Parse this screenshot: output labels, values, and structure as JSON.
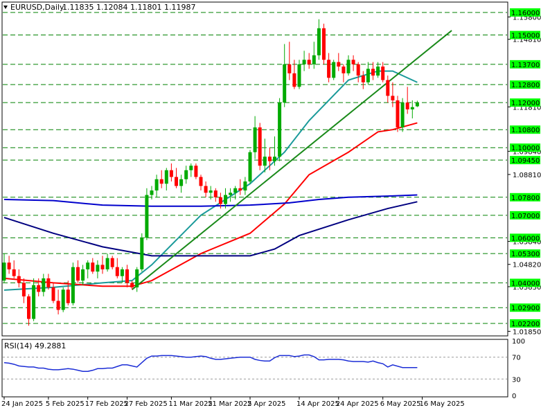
{
  "header": {
    "symbol": "EURUSD,Daily",
    "ohlc": "1.11835 1.12084 1.11801 1.11987",
    "menu_icon": "triangle-down-icon"
  },
  "rsi": {
    "title": "RSI(14) 49.2881",
    "scale_labels": [
      "100",
      "70",
      "30",
      "0"
    ],
    "levels": [
      30,
      70
    ]
  },
  "colors": {
    "bull": "#00aa00",
    "bear": "#ff0000",
    "hline": "#008000",
    "ma_fast": "#1a9a9a",
    "ma_mid": "#ff0000",
    "ma_slow": "#000080",
    "ma_long": "#0000cc",
    "trendline": "#1a8a1a",
    "rsi_line": "#1a2cd6",
    "level_box": "#00ff00"
  },
  "chart_data": {
    "type": "candlestick",
    "symbol": "EURUSD",
    "timeframe": "Daily",
    "ylim": [
      1.018,
      1.164
    ],
    "x_labels": [
      {
        "i": 0,
        "text": "24 Jan 2025"
      },
      {
        "i": 9,
        "text": "5 Feb 2025"
      },
      {
        "i": 17,
        "text": "17 Feb 2025"
      },
      {
        "i": 25,
        "text": "27 Feb 2025"
      },
      {
        "i": 34,
        "text": "11 Mar 2025"
      },
      {
        "i": 42,
        "text": "21 Mar 2025"
      },
      {
        "i": 50,
        "text": "2 Apr 2025"
      },
      {
        "i": 60,
        "text": "14 Apr 2025"
      },
      {
        "i": 68,
        "text": "24 Apr 2025"
      },
      {
        "i": 77,
        "text": "6 May 2025"
      },
      {
        "i": 85,
        "text": "16 May 2025"
      }
    ],
    "right_axis_ticks": [
      "1.15800",
      "1.14810",
      "1.11810",
      "1.09840",
      "1.08810",
      "1.05840",
      "1.04820",
      "1.03830",
      "1.01850"
    ],
    "horizontal_levels": [
      {
        "label": "1.16000",
        "value": 1.16
      },
      {
        "label": "1.15000",
        "value": 1.15
      },
      {
        "label": "1.13700",
        "value": 1.137
      },
      {
        "label": "1.12800",
        "value": 1.128
      },
      {
        "label": "1.12000",
        "value": 1.12
      },
      {
        "label": "1.10800",
        "value": 1.108
      },
      {
        "label": "1.10000",
        "value": 1.1
      },
      {
        "label": "1.09450",
        "value": 1.0945
      },
      {
        "label": "1.07800",
        "value": 1.078
      },
      {
        "label": "1.07000",
        "value": 1.07
      },
      {
        "label": "1.06000",
        "value": 1.06
      },
      {
        "label": "1.05300",
        "value": 1.053
      },
      {
        "label": "1.04000",
        "value": 1.04
      },
      {
        "label": "1.02900",
        "value": 1.029
      },
      {
        "label": "1.02200",
        "value": 1.022
      }
    ],
    "candles": [
      [
        1.041,
        1.053,
        1.04,
        1.049
      ],
      [
        1.049,
        1.052,
        1.044,
        1.046
      ],
      [
        1.046,
        1.05,
        1.042,
        1.043
      ],
      [
        1.043,
        1.046,
        1.038,
        1.04
      ],
      [
        1.04,
        1.042,
        1.031,
        1.034
      ],
      [
        1.034,
        1.035,
        1.021,
        1.024
      ],
      [
        1.024,
        1.042,
        1.023,
        1.039
      ],
      [
        1.039,
        1.042,
        1.034,
        1.036
      ],
      [
        1.036,
        1.044,
        1.034,
        1.042
      ],
      [
        1.042,
        1.044,
        1.037,
        1.038
      ],
      [
        1.038,
        1.04,
        1.031,
        1.032
      ],
      [
        1.032,
        1.037,
        1.026,
        1.028
      ],
      [
        1.028,
        1.038,
        1.027,
        1.037
      ],
      [
        1.037,
        1.041,
        1.03,
        1.031
      ],
      [
        1.031,
        1.049,
        1.03,
        1.047
      ],
      [
        1.047,
        1.05,
        1.04,
        1.041
      ],
      [
        1.041,
        1.048,
        1.039,
        1.046
      ],
      [
        1.046,
        1.05,
        1.042,
        1.049
      ],
      [
        1.049,
        1.051,
        1.044,
        1.045
      ],
      [
        1.045,
        1.05,
        1.042,
        1.048
      ],
      [
        1.048,
        1.052,
        1.044,
        1.046
      ],
      [
        1.046,
        1.053,
        1.045,
        1.051
      ],
      [
        1.051,
        1.052,
        1.046,
        1.047
      ],
      [
        1.047,
        1.051,
        1.042,
        1.043
      ],
      [
        1.043,
        1.047,
        1.04,
        1.046
      ],
      [
        1.046,
        1.048,
        1.038,
        1.04
      ],
      [
        1.04,
        1.041,
        1.037,
        1.038
      ],
      [
        1.038,
        1.047,
        1.036,
        1.046
      ],
      [
        1.046,
        1.062,
        1.045,
        1.06
      ],
      [
        1.06,
        1.082,
        1.059,
        1.079
      ],
      [
        1.079,
        1.083,
        1.077,
        1.081
      ],
      [
        1.081,
        1.088,
        1.078,
        1.086
      ],
      [
        1.086,
        1.09,
        1.082,
        1.084
      ],
      [
        1.084,
        1.091,
        1.081,
        1.09
      ],
      [
        1.09,
        1.093,
        1.085,
        1.087
      ],
      [
        1.087,
        1.091,
        1.082,
        1.083
      ],
      [
        1.083,
        1.088,
        1.08,
        1.086
      ],
      [
        1.086,
        1.092,
        1.084,
        1.09
      ],
      [
        1.09,
        1.093,
        1.087,
        1.092
      ],
      [
        1.092,
        1.093,
        1.086,
        1.087
      ],
      [
        1.087,
        1.088,
        1.081,
        1.083
      ],
      [
        1.083,
        1.085,
        1.078,
        1.08
      ],
      [
        1.08,
        1.083,
        1.077,
        1.081
      ],
      [
        1.081,
        1.082,
        1.076,
        1.078
      ],
      [
        1.078,
        1.08,
        1.073,
        1.075
      ],
      [
        1.075,
        1.082,
        1.073,
        1.079
      ],
      [
        1.079,
        1.082,
        1.076,
        1.08
      ],
      [
        1.08,
        1.083,
        1.077,
        1.082
      ],
      [
        1.082,
        1.086,
        1.079,
        1.081
      ],
      [
        1.081,
        1.087,
        1.079,
        1.085
      ],
      [
        1.085,
        1.099,
        1.084,
        1.098
      ],
      [
        1.098,
        1.114,
        1.095,
        1.109
      ],
      [
        1.109,
        1.111,
        1.09,
        1.092
      ],
      [
        1.092,
        1.104,
        1.089,
        1.096
      ],
      [
        1.096,
        1.1,
        1.09,
        1.094
      ],
      [
        1.094,
        1.105,
        1.092,
        1.096
      ],
      [
        1.096,
        1.122,
        1.094,
        1.12
      ],
      [
        1.12,
        1.146,
        1.118,
        1.137
      ],
      [
        1.137,
        1.147,
        1.13,
        1.133
      ],
      [
        1.133,
        1.139,
        1.126,
        1.127
      ],
      [
        1.127,
        1.139,
        1.126,
        1.137
      ],
      [
        1.137,
        1.143,
        1.134,
        1.139
      ],
      [
        1.139,
        1.142,
        1.135,
        1.137
      ],
      [
        1.137,
        1.147,
        1.135,
        1.141
      ],
      [
        1.141,
        1.157,
        1.139,
        1.153
      ],
      [
        1.153,
        1.155,
        1.137,
        1.139
      ],
      [
        1.139,
        1.142,
        1.129,
        1.131
      ],
      [
        1.131,
        1.139,
        1.13,
        1.138
      ],
      [
        1.138,
        1.142,
        1.134,
        1.136
      ],
      [
        1.136,
        1.137,
        1.129,
        1.133
      ],
      [
        1.133,
        1.141,
        1.132,
        1.139
      ],
      [
        1.139,
        1.141,
        1.134,
        1.137
      ],
      [
        1.137,
        1.138,
        1.129,
        1.132
      ],
      [
        1.132,
        1.134,
        1.126,
        1.129
      ],
      [
        1.129,
        1.138,
        1.128,
        1.135
      ],
      [
        1.135,
        1.138,
        1.13,
        1.132
      ],
      [
        1.132,
        1.138,
        1.131,
        1.136
      ],
      [
        1.136,
        1.138,
        1.129,
        1.13
      ],
      [
        1.13,
        1.132,
        1.12,
        1.123
      ],
      [
        1.123,
        1.129,
        1.118,
        1.121
      ],
      [
        1.121,
        1.123,
        1.107,
        1.109
      ],
      [
        1.109,
        1.122,
        1.107,
        1.12
      ],
      [
        1.12,
        1.127,
        1.115,
        1.117
      ],
      [
        1.117,
        1.121,
        1.113,
        1.118
      ],
      [
        1.11835,
        1.12084,
        1.11801,
        1.11987
      ]
    ],
    "moving_averages": [
      {
        "role": "ma_fast",
        "x": [
          0,
          10,
          20,
          26,
          30,
          40,
          50,
          57,
          62,
          70,
          76,
          79,
          84
        ],
        "y": [
          1.0368,
          1.038,
          1.04,
          1.041,
          1.048,
          1.07,
          1.084,
          1.098,
          1.112,
          1.13,
          1.134,
          1.134,
          1.129
        ]
      },
      {
        "role": "ma_mid",
        "x": [
          0,
          10,
          20,
          26,
          30,
          40,
          50,
          57,
          62,
          70,
          76,
          79,
          84
        ],
        "y": [
          1.042,
          1.04,
          1.0385,
          1.0385,
          1.041,
          1.053,
          1.062,
          1.075,
          1.088,
          1.098,
          1.107,
          1.108,
          1.111
        ]
      },
      {
        "role": "ma_slow",
        "x": [
          0,
          10,
          20,
          30,
          40,
          50,
          55,
          60,
          70,
          78,
          84
        ],
        "y": [
          1.069,
          1.062,
          1.056,
          1.052,
          1.052,
          1.052,
          1.055,
          1.061,
          1.068,
          1.073,
          1.076
        ]
      },
      {
        "role": "ma_long",
        "x": [
          0,
          10,
          20,
          30,
          40,
          50,
          58,
          64,
          70,
          78,
          84
        ],
        "y": [
          1.077,
          1.0765,
          1.0745,
          1.074,
          1.074,
          1.0745,
          1.0755,
          1.077,
          1.078,
          1.0785,
          1.079
        ]
      }
    ],
    "trendlines": [
      {
        "x": [
          26,
          91
        ],
        "y": [
          1.037,
          1.152
        ]
      }
    ],
    "rsi_series": [
      60,
      59,
      57,
      54,
      53,
      52,
      52,
      50,
      50,
      48,
      47,
      47,
      48,
      49,
      48,
      46,
      44,
      44,
      46,
      49,
      49,
      50,
      50,
      53,
      56,
      56,
      54,
      52,
      60,
      68,
      72,
      72,
      73,
      73,
      73,
      72,
      71,
      70,
      70,
      71,
      72,
      71,
      68,
      66,
      66,
      67,
      68,
      69,
      70,
      70,
      70,
      66,
      64,
      63,
      63,
      69,
      73,
      73,
      73,
      71,
      72,
      74,
      74,
      71,
      65,
      65,
      66,
      66,
      66,
      65,
      63,
      62,
      62,
      62,
      61,
      63,
      60,
      58,
      52,
      56,
      51,
      51,
      51,
      51
    ],
    "rsi_points_dropped_tail_gap_index": 80
  }
}
